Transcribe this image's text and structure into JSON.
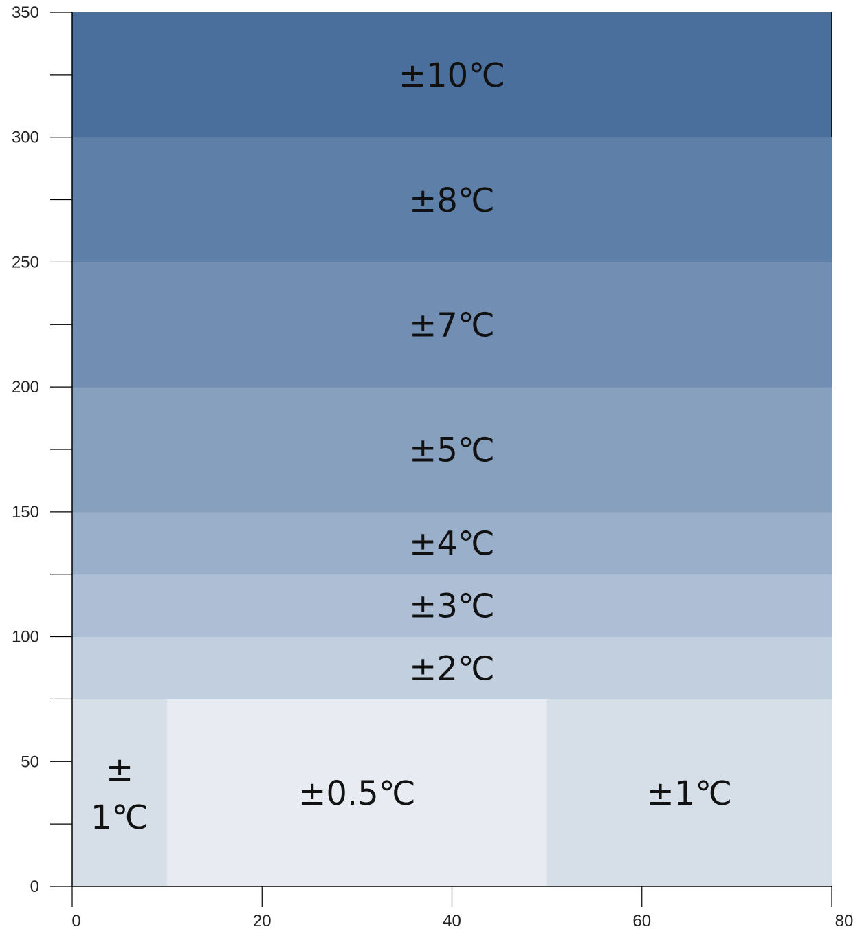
{
  "chart_data": {
    "type": "heatmap",
    "title": "",
    "xlabel": "",
    "ylabel": "",
    "xlim": [
      0,
      80
    ],
    "ylim": [
      0,
      350
    ],
    "x_ticks": [
      "0",
      "20",
      "40",
      "60",
      "80"
    ],
    "y_ticks": [
      "0",
      "50",
      "100",
      "150",
      "200",
      "250",
      "300",
      "350"
    ],
    "x_tick_values": [
      0,
      20,
      40,
      60,
      80
    ],
    "y_tick_values": [
      0,
      50,
      100,
      150,
      200,
      250,
      300,
      350
    ],
    "y_minor_tick_values": [
      25,
      75,
      125,
      175,
      225,
      275,
      325
    ],
    "grid": false,
    "regions": [
      {
        "x0": 0,
        "x1": 10,
        "y0": 0,
        "y1": 75,
        "label": "±\n1℃",
        "color": "#d6dee8"
      },
      {
        "x0": 10,
        "x1": 50,
        "y0": 0,
        "y1": 75,
        "label": "±0.5℃",
        "color": "#e8ecf2"
      },
      {
        "x0": 50,
        "x1": 80,
        "y0": 0,
        "y1": 75,
        "label": "±1℃",
        "color": "#d6dee8"
      },
      {
        "x0": 0,
        "x1": 80,
        "y0": 75,
        "y1": 100,
        "label": "±2℃",
        "color": "#c2cfdf"
      },
      {
        "x0": 0,
        "x1": 80,
        "y0": 100,
        "y1": 125,
        "label": "±3℃",
        "color": "#aebfd5"
      },
      {
        "x0": 0,
        "x1": 80,
        "y0": 125,
        "y1": 150,
        "label": "±4℃",
        "color": "#9aafc9"
      },
      {
        "x0": 0,
        "x1": 80,
        "y0": 150,
        "y1": 200,
        "label": "±5℃",
        "color": "#86a0bd"
      },
      {
        "x0": 0,
        "x1": 80,
        "y0": 200,
        "y1": 250,
        "label": "±7℃",
        "color": "#728eb2"
      },
      {
        "x0": 0,
        "x1": 80,
        "y0": 250,
        "y1": 300,
        "label": "±8℃",
        "color": "#5d7fa8"
      },
      {
        "x0": 0,
        "x1": 80,
        "y0": 300,
        "y1": 350,
        "label": "±10℃",
        "color": "#4a6f9c"
      }
    ]
  }
}
